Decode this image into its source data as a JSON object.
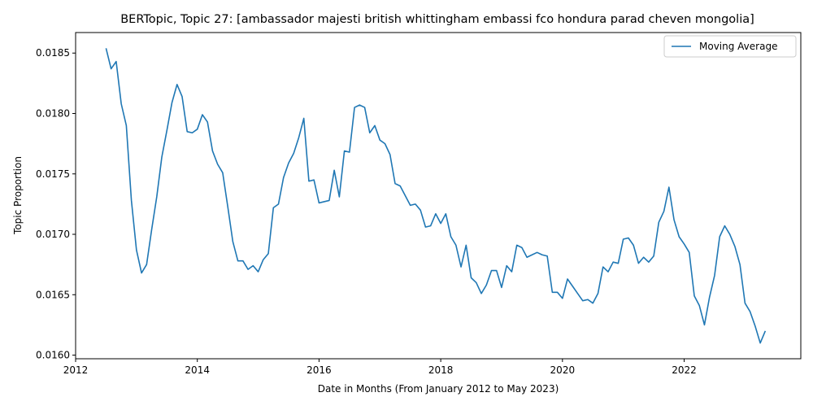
{
  "chart_data": {
    "type": "line",
    "title": "BERTopic, Topic 27: [ambassador majesti british whittingham embassi fco hondura parad cheven mongolia]",
    "xlabel": "Date in Months (From January 2012 to May 2023)",
    "ylabel": "Topic Proportion",
    "xlim": [
      "2012-01",
      "2023-12"
    ],
    "ylim": [
      0.01597,
      0.01867
    ],
    "x_ticks": [
      "2012",
      "2014",
      "2016",
      "2018",
      "2020",
      "2022"
    ],
    "y_ticks": [
      "0.0160",
      "0.0165",
      "0.0170",
      "0.0175",
      "0.0180",
      "0.0185"
    ],
    "grid": false,
    "legend": {
      "position": "top-right",
      "entries": [
        "Moving Average"
      ]
    },
    "series": [
      {
        "name": "Moving Average",
        "color": "#1f77b4",
        "x": [
          "2012-07",
          "2012-08",
          "2012-09",
          "2012-10",
          "2012-11",
          "2012-12",
          "2013-01",
          "2013-02",
          "2013-03",
          "2013-04",
          "2013-05",
          "2013-06",
          "2013-07",
          "2013-08",
          "2013-09",
          "2013-10",
          "2013-11",
          "2013-12",
          "2014-01",
          "2014-02",
          "2014-03",
          "2014-04",
          "2014-05",
          "2014-06",
          "2014-07",
          "2014-08",
          "2014-09",
          "2014-10",
          "2014-11",
          "2014-12",
          "2015-01",
          "2015-02",
          "2015-03",
          "2015-04",
          "2015-05",
          "2015-06",
          "2015-07",
          "2015-08",
          "2015-09",
          "2015-10",
          "2015-11",
          "2015-12",
          "2016-01",
          "2016-02",
          "2016-03",
          "2016-04",
          "2016-05",
          "2016-06",
          "2016-07",
          "2016-08",
          "2016-09",
          "2016-10",
          "2016-11",
          "2016-12",
          "2017-01",
          "2017-02",
          "2017-03",
          "2017-04",
          "2017-05",
          "2017-06",
          "2017-07",
          "2017-08",
          "2017-09",
          "2017-10",
          "2017-11",
          "2017-12",
          "2018-01",
          "2018-02",
          "2018-03",
          "2018-04",
          "2018-05",
          "2018-06",
          "2018-07",
          "2018-08",
          "2018-09",
          "2018-10",
          "2018-11",
          "2018-12",
          "2019-01",
          "2019-02",
          "2019-03",
          "2019-04",
          "2019-05",
          "2019-06",
          "2019-07",
          "2019-08",
          "2019-09",
          "2019-10",
          "2019-11",
          "2019-12",
          "2020-01",
          "2020-02",
          "2020-03",
          "2020-04",
          "2020-05",
          "2020-06",
          "2020-07",
          "2020-08",
          "2020-09",
          "2020-10",
          "2020-11",
          "2020-12",
          "2021-01",
          "2021-02",
          "2021-03",
          "2021-04",
          "2021-05",
          "2021-06",
          "2021-07",
          "2021-08",
          "2021-09",
          "2021-10",
          "2021-11",
          "2021-12",
          "2022-01",
          "2022-02",
          "2022-03",
          "2022-04",
          "2022-05",
          "2022-06",
          "2022-07",
          "2022-08",
          "2022-09",
          "2022-10",
          "2022-11",
          "2022-12",
          "2023-01",
          "2023-02",
          "2023-03",
          "2023-04",
          "2023-05"
        ],
        "values": [
          0.01854,
          0.01837,
          0.01843,
          0.01808,
          0.0179,
          0.01728,
          0.01687,
          0.01668,
          0.01675,
          0.01704,
          0.01731,
          0.01764,
          0.01786,
          0.01809,
          0.01824,
          0.01814,
          0.01785,
          0.01784,
          0.01787,
          0.01799,
          0.01793,
          0.01769,
          0.01758,
          0.01751,
          0.01723,
          0.01694,
          0.01678,
          0.01678,
          0.01671,
          0.01674,
          0.01669,
          0.01679,
          0.01684,
          0.01722,
          0.01725,
          0.01747,
          0.01759,
          0.01767,
          0.0178,
          0.01796,
          0.01744,
          0.01745,
          0.01726,
          0.01727,
          0.01728,
          0.01753,
          0.01731,
          0.01769,
          0.01768,
          0.01805,
          0.01807,
          0.01805,
          0.01784,
          0.0179,
          0.01778,
          0.01775,
          0.01766,
          0.01742,
          0.0174,
          0.01732,
          0.01724,
          0.01725,
          0.0172,
          0.01706,
          0.01707,
          0.01717,
          0.01709,
          0.01717,
          0.01698,
          0.01691,
          0.01673,
          0.01691,
          0.01664,
          0.0166,
          0.01651,
          0.01658,
          0.0167,
          0.0167,
          0.01656,
          0.01674,
          0.01669,
          0.01691,
          0.01689,
          0.01681,
          0.01683,
          0.01685,
          0.01683,
          0.01682,
          0.01652,
          0.01652,
          0.01647,
          0.01663,
          0.01657,
          0.01651,
          0.01645,
          0.01646,
          0.01643,
          0.01651,
          0.01673,
          0.01669,
          0.01677,
          0.01676,
          0.01696,
          0.01697,
          0.01691,
          0.01676,
          0.01681,
          0.01677,
          0.01682,
          0.0171,
          0.01719,
          0.01739,
          0.01712,
          0.01698,
          0.01692,
          0.01685,
          0.01649,
          0.01641,
          0.01625,
          0.01648,
          0.01666,
          0.01698,
          0.01707,
          0.017,
          0.0169,
          0.01675,
          0.01643,
          0.01636,
          0.01624,
          0.0161,
          0.0162
        ]
      }
    ]
  }
}
